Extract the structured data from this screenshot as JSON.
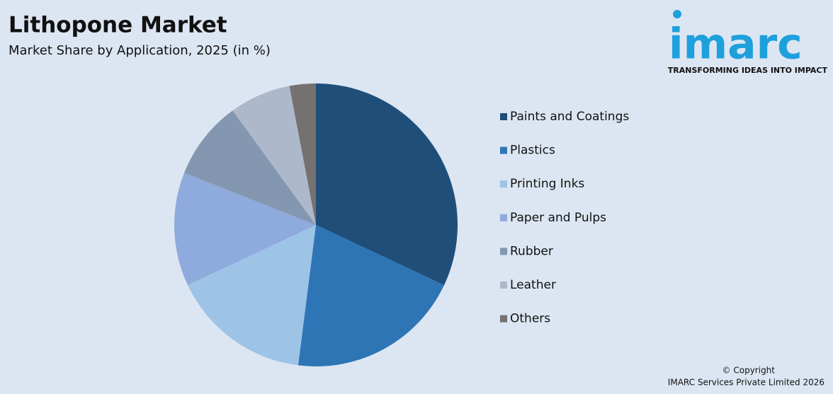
{
  "chart_data": {
    "type": "pie",
    "title": "Lithopone Market",
    "subtitle": "Market Share by Application, 2025 (in %)",
    "categories": [
      "Paints and Coatings",
      "Plastics",
      "Printing Inks",
      "Paper and Pulps",
      "Rubber",
      "Leather",
      "Others"
    ],
    "values": [
      32,
      20,
      16,
      13,
      9,
      7,
      3
    ],
    "colors": [
      "#1f4e79",
      "#2e75b6",
      "#9dc3e6",
      "#8faadc",
      "#8497b0",
      "#adb9ca",
      "#767171"
    ],
    "legend": "right"
  },
  "logo": {
    "name": "imarc",
    "tagline": "TRANSFORMING IDEAS INTO IMPACT"
  },
  "footer": {
    "copyright": "© Copyright",
    "company": "IMARC Services Private Limited 2026"
  }
}
